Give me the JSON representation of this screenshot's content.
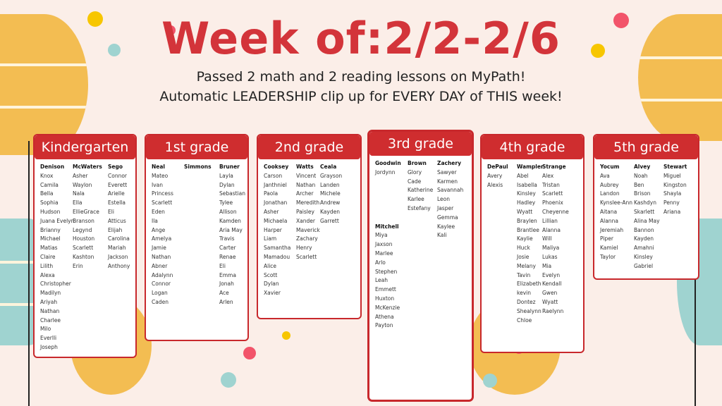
{
  "title": "Week of:2/2-2/6",
  "subtitle_lines": [
    "Passed 2 math and 2 reading lessons on MyPath!",
    "Automatic LEADERSHIP clip up for EVERY DAY of THIS week!"
  ],
  "colors": {
    "accent": "#cf2d2f",
    "background": "#fbeee8",
    "balloon_yellow": "#f3bd52",
    "balloon_teal": "#9fd3d0"
  },
  "grades": [
    {
      "title": "Kindergarten",
      "columns": [
        [
          {
            "teacher": "Denison",
            "students": [
              "Knox",
              "Camila",
              "Bella",
              "Sophia",
              "Hudson",
              "Juana Evelyn",
              "Brianny",
              "Michael",
              "Matias",
              "Claire",
              "Lilith",
              "Alexa",
              "Christopher",
              "Madilyn",
              "Ariyah",
              "Nathan",
              "Charlee",
              "Milo",
              "Everlli",
              "Joseph"
            ]
          }
        ],
        [
          {
            "teacher": "McWaters",
            "students": [
              "Asher",
              "Waylon",
              "Nala",
              "Ella",
              "EllieGrace",
              "Branson",
              "Legynd",
              "Houston",
              "Scarlett",
              "Kashton",
              "Erin"
            ]
          }
        ],
        [
          {
            "teacher": "Sego",
            "students": [
              "Connor",
              "Everett",
              "Arielle",
              "Estella",
              "Eli",
              "Atticus",
              "Elijah",
              "Carolina",
              "Mariah",
              "Jackson",
              "Anthony"
            ]
          }
        ]
      ]
    },
    {
      "title": "1st grade",
      "columns": [
        [
          {
            "teacher": "Neal",
            "students": [
              "Mateo",
              "Ivan",
              "Princess",
              "Scarlett",
              "Eden",
              "Ila",
              "Ange",
              "Amelya",
              "Jamie",
              "Nathan",
              "Abner",
              "Adalynn",
              "Connor",
              "Logan",
              "Caden"
            ]
          }
        ],
        [
          {
            "teacher": "Simmons",
            "students": []
          }
        ],
        [
          {
            "teacher": "Bruner",
            "students": [
              "Layla",
              "Dylan",
              "Sebastian",
              "Tylee",
              "Allison",
              "Kamden",
              "Aria May",
              "Travis",
              "Carter",
              "Renae",
              "Eli",
              "Emma",
              "Jonah",
              "Ace",
              "Arlen"
            ]
          }
        ]
      ]
    },
    {
      "title": "2nd grade",
      "columns": [
        [
          {
            "teacher": "Cooksey",
            "students": [
              "Carson",
              "Janthniel",
              "Paola",
              "Jonathan",
              "Asher",
              "Michaela",
              "Harper",
              "Liam",
              "Samantha",
              "Mamadou",
              "Alice",
              "Scott",
              "Dylan",
              "Xavier"
            ]
          }
        ],
        [
          {
            "teacher": "Watts",
            "students": [
              "Vincent",
              "Nathan",
              "Archer",
              "Meredith",
              "Paisley",
              "Xander",
              "Maverick",
              "Zachary",
              "Henry",
              "Scarlett"
            ]
          }
        ],
        [
          {
            "teacher": "Ceala",
            "students": [
              "Grayson",
              "Landen",
              "Michele",
              "Andrew",
              "Kayden",
              "Garrett"
            ]
          }
        ]
      ]
    },
    {
      "title": "3rd grade",
      "columns": [
        [
          {
            "teacher": "Goodwin",
            "students": [
              "Jordynn"
            ]
          },
          {
            "teacher": "Mitchell",
            "students": [
              "Miya",
              "Jaxson",
              "Marlee",
              "Arlo",
              "Stephen",
              "Leah",
              "Emmett",
              "Huxton",
              "McKenzie",
              "Athena",
              "Payton"
            ]
          }
        ],
        [
          {
            "teacher": "Brown",
            "students": [
              "Glory",
              "Cade",
              "Katherine",
              "Karlee",
              "Estefany"
            ]
          }
        ],
        [
          {
            "teacher": "Zachery",
            "students": [
              "Sawyer",
              "Karmen",
              "Savannah",
              "Leon",
              "Jasper",
              "Gemma",
              "Kaylee",
              "Kali"
            ]
          }
        ]
      ]
    },
    {
      "title": "4th grade",
      "columns": [
        [
          {
            "teacher": "DePaul",
            "students": [
              "Avery",
              "Alexis"
            ]
          }
        ],
        [
          {
            "teacher": "Wampler",
            "students": [
              "Abel",
              "Isabella",
              "Kinsley",
              "Hadley",
              "Wyatt",
              "Braylen",
              "Brantlee",
              "Kaylie",
              "Huck",
              "Josie",
              "Melany",
              "Tavin",
              "Elizabeth",
              "kevin",
              "Dontez",
              "Shealynn",
              "Chloe"
            ]
          }
        ],
        [
          {
            "teacher": "Strange",
            "students": [
              "Alex",
              "Tristan",
              "Scarlett",
              "Phoenix",
              "Cheyenne",
              "Lillian",
              "Alanna",
              "Will",
              "Maliya",
              "Lukas",
              "Mia",
              "Evelyn",
              "Kendall",
              "Gwen",
              "Wyatt",
              "Raelynn"
            ]
          }
        ]
      ]
    },
    {
      "title": "5th grade",
      "columns": [
        [
          {
            "teacher": "Yocum",
            "students": [
              "Ava",
              "Aubrey",
              "Landon",
              "Kynslee-Ann",
              "Aitana",
              "Alanna",
              "Jeremiah",
              "Piper",
              "Kamiel",
              "Taylor"
            ]
          }
        ],
        [
          {
            "teacher": "Alvey",
            "students": [
              "Noah",
              "Ben",
              "Brison",
              "Kashdyn",
              "Skarlett",
              "Alina May",
              "Bannon",
              "Kayden",
              "Amahni",
              "Kinsley",
              "Gabriel"
            ]
          }
        ],
        [
          {
            "teacher": "Stewart",
            "students": [
              "Miguel",
              "Kingston",
              "Shayla",
              "Penny",
              "Ariana"
            ]
          }
        ]
      ]
    }
  ]
}
